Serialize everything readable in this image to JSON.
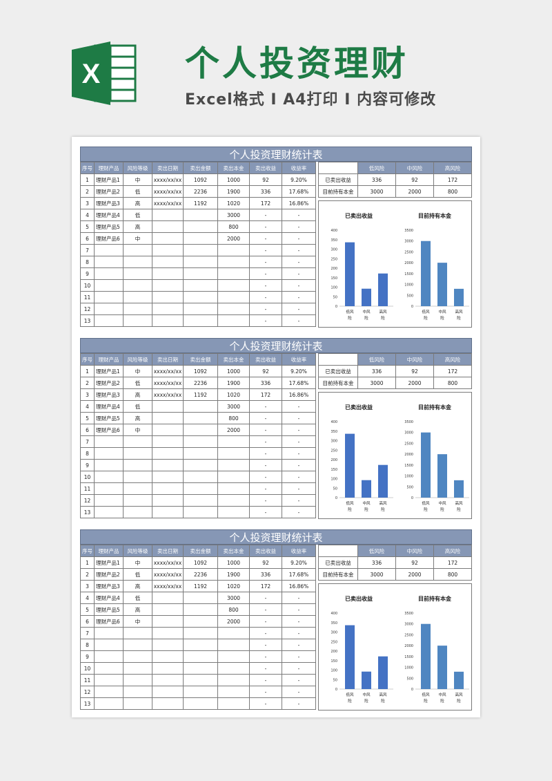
{
  "header": {
    "title": "个人投资理财",
    "subtitle": "Excel格式 I A4打印 I 内容可修改",
    "logo_letter": "X",
    "accent": "#1e7b45"
  },
  "sheets": [
    {
      "title": "个人投资理财统计表",
      "columns": [
        "序号",
        "理财产品",
        "风险等级",
        "卖出日期",
        "卖出金额",
        "卖出本金",
        "卖出收益",
        "收益率"
      ],
      "rows": [
        [
          "1",
          "理财产品1",
          "中",
          "xxxx/xx/xx",
          "1092",
          "1000",
          "92",
          "9.20%"
        ],
        [
          "2",
          "理财产品2",
          "低",
          "xxxx/xx/xx",
          "2236",
          "1900",
          "336",
          "17.68%"
        ],
        [
          "3",
          "理财产品3",
          "高",
          "xxxx/xx/xx",
          "1192",
          "1020",
          "172",
          "16.86%"
        ],
        [
          "4",
          "理财产品4",
          "低",
          "",
          "",
          "3000",
          "-",
          "-"
        ],
        [
          "5",
          "理财产品5",
          "高",
          "",
          "",
          "800",
          "-",
          "-"
        ],
        [
          "6",
          "理财产品6",
          "中",
          "",
          "",
          "2000",
          "-",
          "-"
        ],
        [
          "7",
          "",
          "",
          "",
          "",
          "",
          "-",
          "-"
        ],
        [
          "8",
          "",
          "",
          "",
          "",
          "",
          "-",
          "-"
        ],
        [
          "9",
          "",
          "",
          "",
          "",
          "",
          "-",
          "-"
        ],
        [
          "10",
          "",
          "",
          "",
          "",
          "",
          "-",
          "-"
        ],
        [
          "11",
          "",
          "",
          "",
          "",
          "",
          "-",
          "-"
        ],
        [
          "12",
          "",
          "",
          "",
          "",
          "",
          "-",
          "-"
        ],
        [
          "13",
          "",
          "",
          "",
          "",
          "",
          "-",
          "-"
        ]
      ],
      "summary": {
        "headers": [
          "",
          "低风险",
          "中风险",
          "高风险"
        ],
        "rows": [
          [
            "已卖出收益",
            "336",
            "92",
            "172"
          ],
          [
            "目前持有本金",
            "3000",
            "2000",
            "800"
          ]
        ]
      }
    },
    {
      "title": "个人投资理财统计表",
      "columns": [
        "序号",
        "理财产品",
        "风险等级",
        "卖出日期",
        "卖出金额",
        "卖出本金",
        "卖出收益",
        "收益率"
      ],
      "rows": [
        [
          "1",
          "理财产品1",
          "中",
          "xxxx/xx/xx",
          "1092",
          "1000",
          "92",
          "9.20%"
        ],
        [
          "2",
          "理财产品2",
          "低",
          "xxxx/xx/xx",
          "2236",
          "1900",
          "336",
          "17.68%"
        ],
        [
          "3",
          "理财产品3",
          "高",
          "xxxx/xx/xx",
          "1192",
          "1020",
          "172",
          "16.86%"
        ],
        [
          "4",
          "理财产品4",
          "低",
          "",
          "",
          "3000",
          "-",
          "-"
        ],
        [
          "5",
          "理财产品5",
          "高",
          "",
          "",
          "800",
          "-",
          "-"
        ],
        [
          "6",
          "理财产品6",
          "中",
          "",
          "",
          "2000",
          "-",
          "-"
        ],
        [
          "7",
          "",
          "",
          "",
          "",
          "",
          "-",
          "-"
        ],
        [
          "8",
          "",
          "",
          "",
          "",
          "",
          "-",
          "-"
        ],
        [
          "9",
          "",
          "",
          "",
          "",
          "",
          "-",
          "-"
        ],
        [
          "10",
          "",
          "",
          "",
          "",
          "",
          "-",
          "-"
        ],
        [
          "11",
          "",
          "",
          "",
          "",
          "",
          "-",
          "-"
        ],
        [
          "12",
          "",
          "",
          "",
          "",
          "",
          "-",
          "-"
        ],
        [
          "13",
          "",
          "",
          "",
          "",
          "",
          "-",
          "-"
        ]
      ],
      "summary": {
        "headers": [
          "",
          "低风险",
          "中风险",
          "高风险"
        ],
        "rows": [
          [
            "已卖出收益",
            "336",
            "92",
            "172"
          ],
          [
            "目前持有本金",
            "3000",
            "2000",
            "800"
          ]
        ]
      }
    },
    {
      "title": "个人投资理财统计表",
      "columns": [
        "序号",
        "理财产品",
        "风险等级",
        "卖出日期",
        "卖出金额",
        "卖出本金",
        "卖出收益",
        "收益率"
      ],
      "rows": [
        [
          "1",
          "理财产品1",
          "中",
          "xxxx/xx/xx",
          "1092",
          "1000",
          "92",
          "9.20%"
        ],
        [
          "2",
          "理财产品2",
          "低",
          "xxxx/xx/xx",
          "2236",
          "1900",
          "336",
          "17.68%"
        ],
        [
          "3",
          "理财产品3",
          "高",
          "xxxx/xx/xx",
          "1192",
          "1020",
          "172",
          "16.86%"
        ],
        [
          "4",
          "理财产品4",
          "低",
          "",
          "",
          "3000",
          "-",
          "-"
        ],
        [
          "5",
          "理财产品5",
          "高",
          "",
          "",
          "800",
          "-",
          "-"
        ],
        [
          "6",
          "理财产品6",
          "中",
          "",
          "",
          "2000",
          "-",
          "-"
        ],
        [
          "7",
          "",
          "",
          "",
          "",
          "",
          "-",
          "-"
        ],
        [
          "8",
          "",
          "",
          "",
          "",
          "",
          "-",
          "-"
        ],
        [
          "9",
          "",
          "",
          "",
          "",
          "",
          "-",
          "-"
        ],
        [
          "10",
          "",
          "",
          "",
          "",
          "",
          "-",
          "-"
        ],
        [
          "11",
          "",
          "",
          "",
          "",
          "",
          "-",
          "-"
        ],
        [
          "12",
          "",
          "",
          "",
          "",
          "",
          "-",
          "-"
        ],
        [
          "13",
          "",
          "",
          "",
          "",
          "",
          "-",
          "-"
        ]
      ],
      "summary": {
        "headers": [
          "",
          "低风险",
          "中风险",
          "高风险"
        ],
        "rows": [
          [
            "已卖出收益",
            "336",
            "92",
            "172"
          ],
          [
            "目前持有本金",
            "3000",
            "2000",
            "800"
          ]
        ]
      }
    }
  ],
  "chart_data": [
    {
      "type": "bar",
      "title": "已卖出收益",
      "categories": [
        "低风险",
        "中风险",
        "高风险"
      ],
      "values": [
        336,
        92,
        172
      ],
      "ylim": [
        0,
        400
      ],
      "yticks": [
        "0",
        "50",
        "100",
        "150",
        "200",
        "250",
        "300",
        "350",
        "400"
      ],
      "color": "#4472c4"
    },
    {
      "type": "bar",
      "title": "目前持有本金",
      "categories": [
        "低风险",
        "中风险",
        "高风险"
      ],
      "values": [
        3000,
        2000,
        800
      ],
      "ylim": [
        0,
        3500
      ],
      "yticks": [
        "0",
        "500",
        "1000",
        "1500",
        "2000",
        "2500",
        "3000",
        "3500"
      ],
      "color": "#4f86c1"
    }
  ]
}
